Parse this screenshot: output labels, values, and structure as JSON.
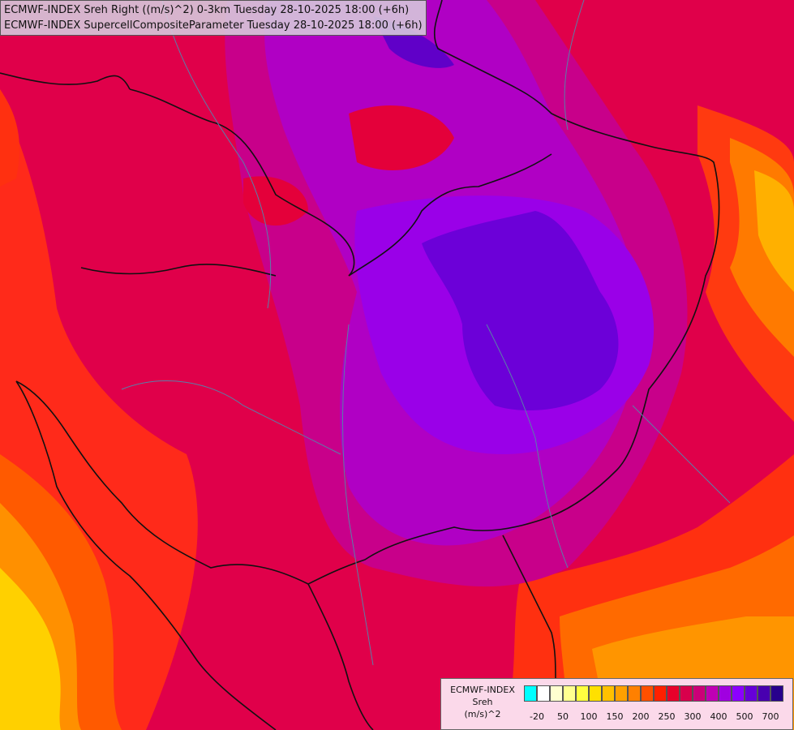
{
  "header": {
    "line1": "ECMWF-INDEX Sreh Right ((m/s)^2) 0-3km Tuesday 28-10-2025 18:00 (+6h)",
    "line2": "ECMWF-INDEX SupercellCompositeParameter Tuesday 28-10-2025 18:00 (+6h)"
  },
  "legend": {
    "line1": "ECMWF-INDEX",
    "line2": "Sreh",
    "line3": "(m/s)^2",
    "ticks": [
      "-20",
      "50",
      "100",
      "150",
      "200",
      "250",
      "300",
      "400",
      "500",
      "700"
    ],
    "colors": [
      "#00ffff",
      "#ffffff",
      "#ffffd0",
      "#ffff90",
      "#ffff40",
      "#ffe000",
      "#ffc000",
      "#ffa000",
      "#ff8000",
      "#ff5000",
      "#ff2000",
      "#e8002a",
      "#d8004c",
      "#cc0078",
      "#c000b4",
      "#a000e0",
      "#8c00ff",
      "#6600d8",
      "#4800b0",
      "#28008c"
    ]
  }
}
